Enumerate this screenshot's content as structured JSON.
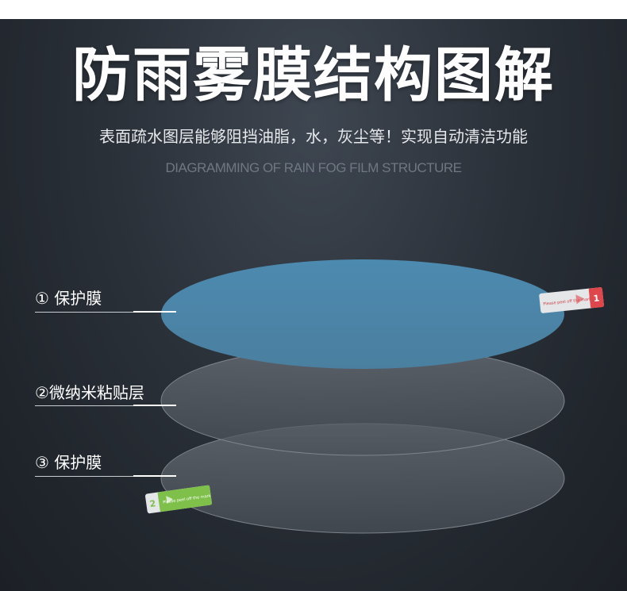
{
  "header": {
    "title": "防雨雾膜结构图解",
    "subtitle": "表面疏水图层能够阻挡油脂，水，灰尘等！实现自动清洁功能",
    "english": "DIAGRAMMING OF RAIN FOG FILM STRUCTURE"
  },
  "layers": [
    {
      "label": "① 保护膜",
      "color": "#4f86a8"
    },
    {
      "label": "②微纳米粘贴层",
      "color": "#5d636b"
    },
    {
      "label": "③ 保护膜",
      "color": "#5a6068"
    }
  ],
  "tabs": [
    {
      "number": "1",
      "color": "#e0474c",
      "text": "Please peel off the mark"
    },
    {
      "number": "2",
      "color": "#7ec04a",
      "text": "Please peel off the mark"
    }
  ]
}
